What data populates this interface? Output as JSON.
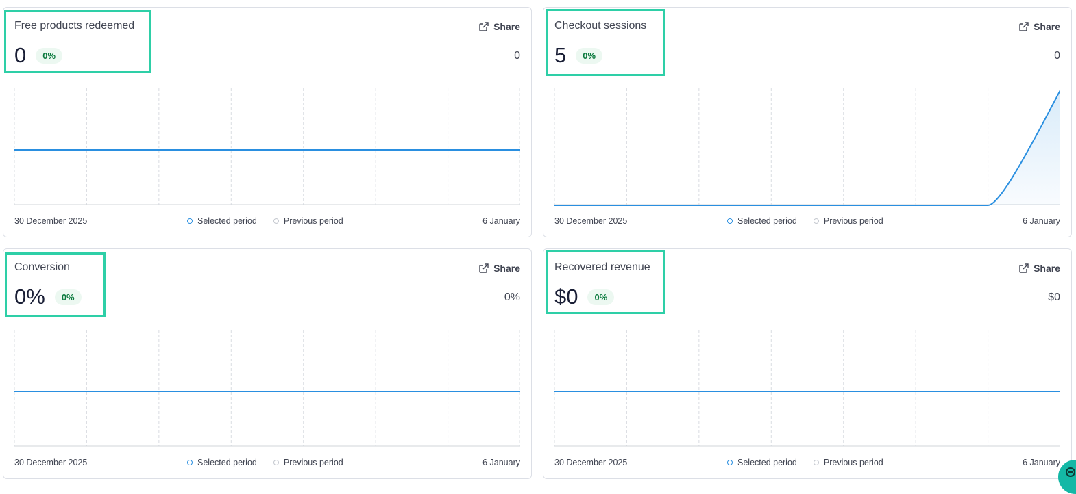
{
  "cards": [
    {
      "title": "Free products redeemed",
      "value": "0",
      "change": "0%",
      "previous_value": "0",
      "share_label": "Share",
      "start_date": "30 December 2025",
      "end_date": "6 January",
      "legend_selected": "Selected period",
      "legend_previous": "Previous period"
    },
    {
      "title": "Checkout sessions",
      "value": "5",
      "change": "0%",
      "previous_value": "0",
      "share_label": "Share",
      "start_date": "30 December 2025",
      "end_date": "6 January",
      "legend_selected": "Selected period",
      "legend_previous": "Previous period"
    },
    {
      "title": "Conversion",
      "value": "0%",
      "change": "0%",
      "previous_value": "0%",
      "share_label": "Share",
      "start_date": "30 December 2025",
      "end_date": "6 January",
      "legend_selected": "Selected period",
      "legend_previous": "Previous period"
    },
    {
      "title": "Recovered revenue",
      "value": "$0",
      "change": "0%",
      "previous_value": "$0",
      "share_label": "Share",
      "start_date": "30 December 2025",
      "end_date": "6 January",
      "legend_selected": "Selected period",
      "legend_previous": "Previous period"
    }
  ],
  "chart_data": [
    {
      "type": "line",
      "series": [
        {
          "values": [
            0,
            0,
            0,
            0,
            0,
            0,
            0,
            0
          ]
        }
      ]
    },
    {
      "type": "area",
      "series": [
        {
          "values": [
            0,
            0,
            0,
            0,
            0,
            0,
            0,
            5
          ]
        }
      ]
    },
    {
      "type": "line",
      "series": [
        {
          "values": [
            0,
            0,
            0,
            0,
            0,
            0,
            0,
            0
          ]
        }
      ]
    },
    {
      "type": "line",
      "series": [
        {
          "values": [
            0,
            0,
            0,
            0,
            0,
            0,
            0,
            0
          ]
        }
      ]
    }
  ],
  "colors": {
    "accent_line": "#2a8fe0",
    "highlight": "#2ecfa7",
    "badge_bg": "#ecf8f1",
    "badge_text": "#0b7a3e"
  },
  "icons": {
    "share": "external-link-icon",
    "help": "help-chat-icon"
  }
}
